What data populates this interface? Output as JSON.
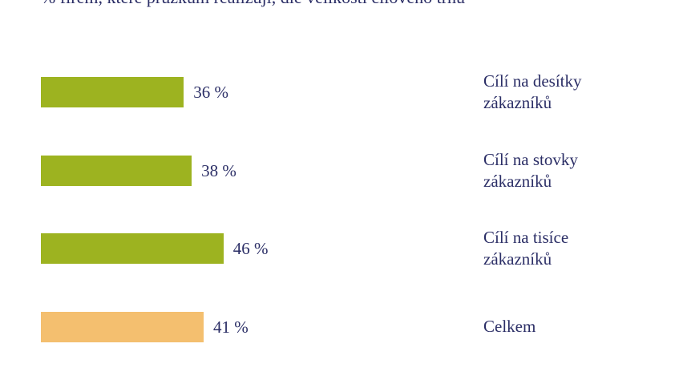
{
  "chart_data": {
    "type": "bar",
    "orientation": "horizontal",
    "title": "% firem, které průzkum realizují, dle velikosti cílového trhu",
    "categories": [
      "Cílí na desítky zákazníků",
      "Cílí na stovky zákazníků",
      "Cílí na tisíce zákazníků",
      "Celkem"
    ],
    "values": [
      36,
      38,
      46,
      41
    ],
    "value_labels": [
      "36 %",
      "38 %",
      "46 %",
      "41 %"
    ],
    "colors": [
      "#9db320",
      "#9db320",
      "#9db320",
      "#f4bf6f"
    ]
  }
}
